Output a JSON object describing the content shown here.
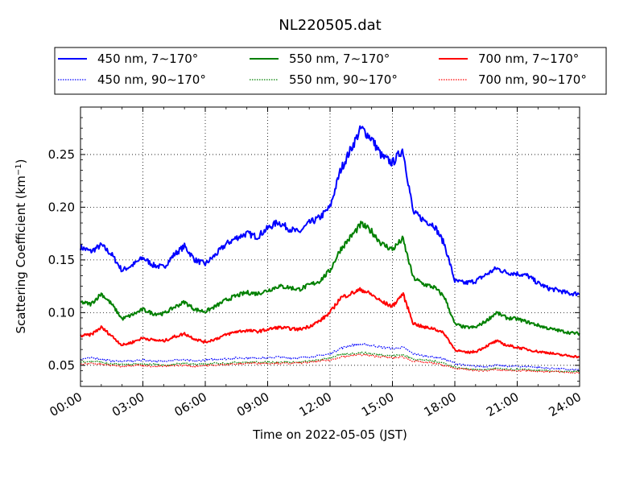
{
  "chart_data": {
    "type": "line",
    "title": "NL220505.dat",
    "xlabel": "Time on 2022-05-05 (JST)",
    "ylabel_main": "Scattering Coefficient (km",
    "ylabel_sup": "−1",
    "ylabel_close": ")",
    "xlim": [
      "2022-05-05 00:00",
      "2022-05-06 00:00"
    ],
    "ylim": [
      0.03,
      0.295
    ],
    "grid": true,
    "legend_placement": "top, above plot",
    "x_ticks": [
      "00:00",
      "03:00",
      "06:00",
      "09:00",
      "12:00",
      "15:00",
      "18:00",
      "21:00",
      "24:00"
    ],
    "y_ticks": [
      "0.05",
      "0.10",
      "0.15",
      "0.20",
      "0.25"
    ],
    "x_hours": [
      0,
      0.5,
      1,
      1.5,
      2,
      2.5,
      3,
      3.5,
      4,
      4.5,
      5,
      5.5,
      6,
      6.5,
      7,
      7.5,
      8,
      8.5,
      9,
      9.5,
      10,
      10.5,
      11,
      11.5,
      12,
      12.5,
      13,
      13.5,
      14,
      14.5,
      15,
      15.5,
      16,
      16.5,
      17,
      17.5,
      18,
      18.5,
      19,
      19.5,
      20,
      20.5,
      21,
      21.5,
      22,
      22.5,
      23,
      23.5,
      24
    ],
    "series": [
      {
        "name": "450 nm, 7∼170°",
        "color": "#0000ff",
        "style": "solid",
        "values": [
          0.162,
          0.158,
          0.164,
          0.155,
          0.14,
          0.145,
          0.152,
          0.145,
          0.143,
          0.155,
          0.163,
          0.15,
          0.146,
          0.155,
          0.165,
          0.171,
          0.175,
          0.172,
          0.18,
          0.186,
          0.18,
          0.176,
          0.185,
          0.19,
          0.2,
          0.235,
          0.255,
          0.275,
          0.265,
          0.248,
          0.242,
          0.255,
          0.195,
          0.188,
          0.183,
          0.165,
          0.13,
          0.128,
          0.13,
          0.136,
          0.142,
          0.138,
          0.137,
          0.135,
          0.128,
          0.123,
          0.121,
          0.118,
          0.118
        ]
      },
      {
        "name": "450 nm, 90∼170°",
        "color": "#0000ff",
        "style": "dotted",
        "values": [
          0.056,
          0.057,
          0.056,
          0.054,
          0.054,
          0.054,
          0.055,
          0.054,
          0.054,
          0.055,
          0.055,
          0.054,
          0.055,
          0.056,
          0.056,
          0.057,
          0.057,
          0.057,
          0.057,
          0.058,
          0.057,
          0.057,
          0.058,
          0.059,
          0.061,
          0.066,
          0.069,
          0.07,
          0.069,
          0.067,
          0.066,
          0.067,
          0.061,
          0.059,
          0.058,
          0.056,
          0.052,
          0.05,
          0.049,
          0.049,
          0.05,
          0.049,
          0.049,
          0.049,
          0.048,
          0.047,
          0.047,
          0.046,
          0.046
        ]
      },
      {
        "name": "550 nm, 7∼170°",
        "color": "#008000",
        "style": "solid",
        "values": [
          0.11,
          0.108,
          0.118,
          0.108,
          0.094,
          0.098,
          0.103,
          0.099,
          0.099,
          0.105,
          0.11,
          0.103,
          0.101,
          0.106,
          0.112,
          0.116,
          0.119,
          0.118,
          0.121,
          0.125,
          0.124,
          0.122,
          0.126,
          0.13,
          0.14,
          0.16,
          0.172,
          0.184,
          0.177,
          0.165,
          0.16,
          0.17,
          0.133,
          0.127,
          0.124,
          0.115,
          0.089,
          0.086,
          0.086,
          0.092,
          0.1,
          0.095,
          0.094,
          0.091,
          0.088,
          0.085,
          0.083,
          0.081,
          0.08
        ]
      },
      {
        "name": "550 nm, 90∼170°",
        "color": "#008000",
        "style": "dotted",
        "values": [
          0.053,
          0.054,
          0.053,
          0.051,
          0.051,
          0.051,
          0.051,
          0.051,
          0.05,
          0.051,
          0.052,
          0.051,
          0.051,
          0.052,
          0.052,
          0.053,
          0.053,
          0.053,
          0.053,
          0.053,
          0.053,
          0.053,
          0.054,
          0.055,
          0.057,
          0.06,
          0.061,
          0.062,
          0.061,
          0.06,
          0.059,
          0.06,
          0.056,
          0.055,
          0.054,
          0.052,
          0.048,
          0.047,
          0.046,
          0.046,
          0.047,
          0.046,
          0.046,
          0.046,
          0.045,
          0.045,
          0.044,
          0.044,
          0.044
        ]
      },
      {
        "name": "700 nm, 7∼170°",
        "color": "#ff0000",
        "style": "solid",
        "values": [
          0.078,
          0.079,
          0.086,
          0.078,
          0.069,
          0.072,
          0.076,
          0.074,
          0.073,
          0.077,
          0.08,
          0.075,
          0.072,
          0.075,
          0.079,
          0.082,
          0.083,
          0.082,
          0.084,
          0.086,
          0.085,
          0.084,
          0.087,
          0.092,
          0.1,
          0.114,
          0.118,
          0.122,
          0.117,
          0.11,
          0.106,
          0.118,
          0.09,
          0.086,
          0.085,
          0.08,
          0.065,
          0.062,
          0.063,
          0.068,
          0.073,
          0.069,
          0.067,
          0.065,
          0.063,
          0.062,
          0.06,
          0.059,
          0.058
        ]
      },
      {
        "name": "700 nm, 90∼170°",
        "color": "#ff0000",
        "style": "dotted",
        "values": [
          0.051,
          0.052,
          0.051,
          0.05,
          0.049,
          0.05,
          0.05,
          0.049,
          0.049,
          0.05,
          0.05,
          0.049,
          0.05,
          0.05,
          0.051,
          0.051,
          0.052,
          0.052,
          0.052,
          0.052,
          0.052,
          0.052,
          0.053,
          0.054,
          0.055,
          0.058,
          0.059,
          0.06,
          0.059,
          0.058,
          0.057,
          0.058,
          0.054,
          0.053,
          0.052,
          0.05,
          0.047,
          0.046,
          0.045,
          0.045,
          0.046,
          0.045,
          0.045,
          0.045,
          0.044,
          0.044,
          0.044,
          0.043,
          0.043
        ]
      }
    ]
  }
}
